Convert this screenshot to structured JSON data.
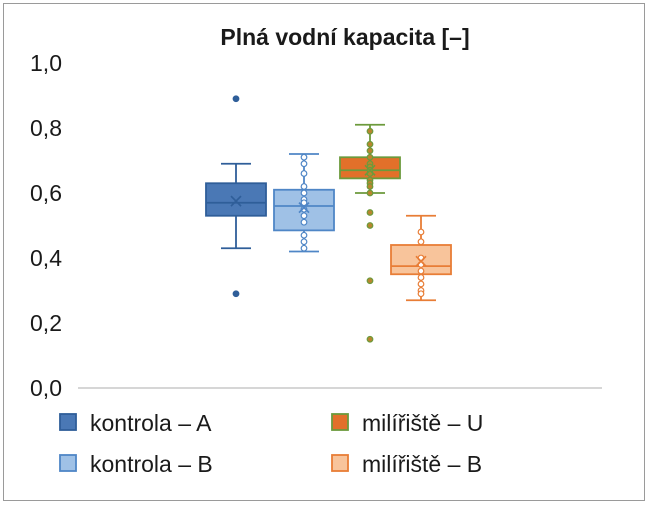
{
  "chart_data": {
    "type": "box",
    "title": "Plná vodní kapacita [–]",
    "xlabel": "",
    "ylabel": "",
    "ylim": [
      0,
      1.0
    ],
    "y_ticks": [
      "0,0",
      "0,2",
      "0,4",
      "0,6",
      "0,8",
      "1,0"
    ],
    "grid": false,
    "legend_placement": "bottom",
    "series": [
      {
        "name": "kontrola – A",
        "fill": "#4a78b5",
        "stroke": "#2f5e99",
        "point_fill": "#2f5e99",
        "whisker_low": 0.43,
        "q1": 0.53,
        "median": 0.57,
        "q3": 0.63,
        "whisker_high": 0.69,
        "mean": 0.575,
        "points": [
          0.89,
          0.29
        ]
      },
      {
        "name": "kontrola – B",
        "fill": "#9fc1e6",
        "stroke": "#4f86c6",
        "point_fill": "#ffffff",
        "whisker_low": 0.42,
        "q1": 0.485,
        "median": 0.56,
        "q3": 0.61,
        "whisker_high": 0.72,
        "mean": 0.555,
        "points": [
          0.71,
          0.69,
          0.66,
          0.62,
          0.6,
          0.58,
          0.57,
          0.55,
          0.53,
          0.51,
          0.47,
          0.45,
          0.43
        ]
      },
      {
        "name": "milířiště – U",
        "fill": "#e2702a",
        "stroke": "#6c9a3c",
        "point_fill": "#b8862e",
        "whisker_low": 0.6,
        "q1": 0.645,
        "median": 0.67,
        "q3": 0.71,
        "whisker_high": 0.81,
        "mean": 0.67,
        "points": [
          0.79,
          0.75,
          0.73,
          0.71,
          0.69,
          0.68,
          0.67,
          0.66,
          0.64,
          0.63,
          0.62,
          0.6,
          0.54,
          0.5,
          0.33,
          0.15
        ]
      },
      {
        "name": "milířiště – B",
        "fill": "#f8c49b",
        "stroke": "#e87d36",
        "point_fill": "#ffffff",
        "whisker_low": 0.27,
        "q1": 0.35,
        "median": 0.375,
        "q3": 0.44,
        "whisker_high": 0.53,
        "mean": 0.39,
        "points": [
          0.48,
          0.45,
          0.4,
          0.38,
          0.36,
          0.34,
          0.32,
          0.3,
          0.29
        ]
      }
    ]
  }
}
